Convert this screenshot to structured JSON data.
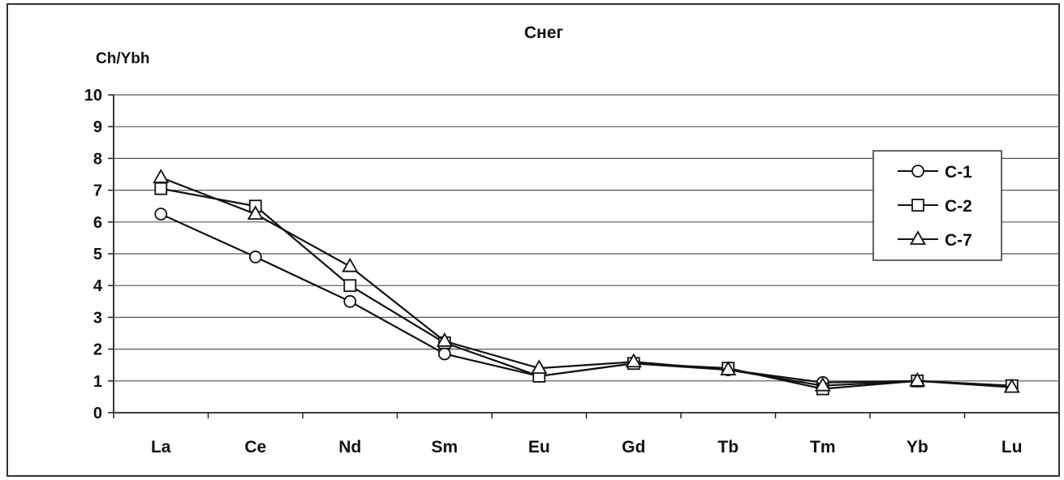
{
  "chart_data": {
    "type": "line",
    "title": "Снег",
    "ylabel": "Ch/Ybh",
    "xlabel": "",
    "categories": [
      "La",
      "Ce",
      "Nd",
      "Sm",
      "Eu",
      "Gd",
      "Tb",
      "Tm",
      "Yb",
      "Lu"
    ],
    "ylim": [
      0,
      10
    ],
    "yticks": [
      0,
      1,
      2,
      3,
      4,
      5,
      6,
      7,
      8,
      9,
      10
    ],
    "grid": true,
    "legend": "right",
    "series": [
      {
        "name": "C-1",
        "marker": "circle",
        "values": [
          6.25,
          4.9,
          3.5,
          1.85,
          1.15,
          1.55,
          1.35,
          0.95,
          1.0,
          0.85
        ]
      },
      {
        "name": "C-2",
        "marker": "square",
        "values": [
          7.05,
          6.5,
          4.0,
          2.2,
          1.15,
          1.55,
          1.4,
          0.75,
          1.0,
          0.85
        ]
      },
      {
        "name": "C-7",
        "marker": "triangle",
        "values": [
          7.4,
          6.25,
          4.6,
          2.25,
          1.4,
          1.6,
          1.35,
          0.85,
          1.0,
          0.8
        ]
      }
    ]
  }
}
